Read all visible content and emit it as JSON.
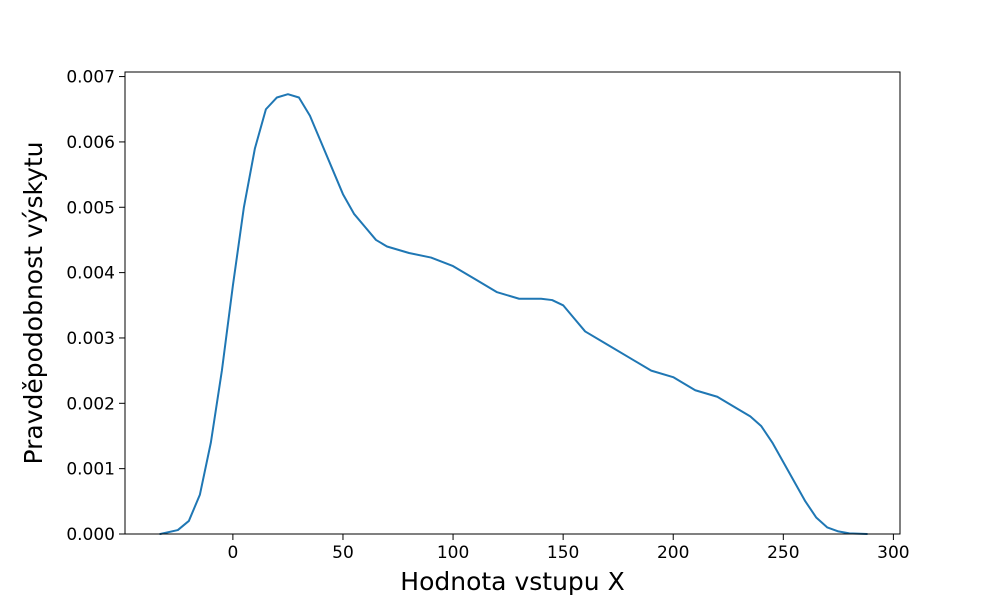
{
  "chart_data": {
    "type": "line",
    "title": "",
    "xlabel": "Hodnota vstupu X",
    "ylabel": "Pravděpodobnost výskytu",
    "xlim": [
      -49,
      303
    ],
    "ylim": [
      0,
      0.00707
    ],
    "xticks": [
      0,
      50,
      100,
      150,
      200,
      250,
      300
    ],
    "xtick_labels": [
      "0",
      "50",
      "100",
      "150",
      "200",
      "250",
      "300"
    ],
    "yticks": [
      0,
      0.001,
      0.002,
      0.003,
      0.004,
      0.005,
      0.006,
      0.007
    ],
    "ytick_labels": [
      "0.000",
      "0.001",
      "0.002",
      "0.003",
      "0.004",
      "0.005",
      "0.006",
      "0.007"
    ],
    "grid": false,
    "series": [
      {
        "color": "#1f77b4",
        "x": [
          -33,
          -25,
          -20,
          -15,
          -10,
          -5,
          0,
          5,
          10,
          15,
          20,
          25,
          30,
          35,
          40,
          45,
          50,
          55,
          60,
          65,
          70,
          75,
          80,
          90,
          100,
          110,
          120,
          130,
          140,
          145,
          150,
          155,
          160,
          170,
          180,
          190,
          200,
          210,
          220,
          230,
          235,
          240,
          245,
          250,
          255,
          260,
          265,
          270,
          275,
          280,
          288
        ],
        "y": [
          0.0,
          6e-05,
          0.0002,
          0.0006,
          0.0014,
          0.0025,
          0.0038,
          0.005,
          0.0059,
          0.0065,
          0.00668,
          0.00673,
          0.00668,
          0.0064,
          0.006,
          0.0056,
          0.0052,
          0.0049,
          0.0047,
          0.0045,
          0.0044,
          0.00435,
          0.0043,
          0.00423,
          0.0041,
          0.0039,
          0.0037,
          0.0036,
          0.0036,
          0.00358,
          0.0035,
          0.0033,
          0.0031,
          0.0029,
          0.0027,
          0.0025,
          0.0024,
          0.0022,
          0.0021,
          0.0019,
          0.0018,
          0.00165,
          0.0014,
          0.0011,
          0.0008,
          0.0005,
          0.00025,
          0.0001,
          4e-05,
          1e-05,
          0.0
        ]
      }
    ]
  }
}
